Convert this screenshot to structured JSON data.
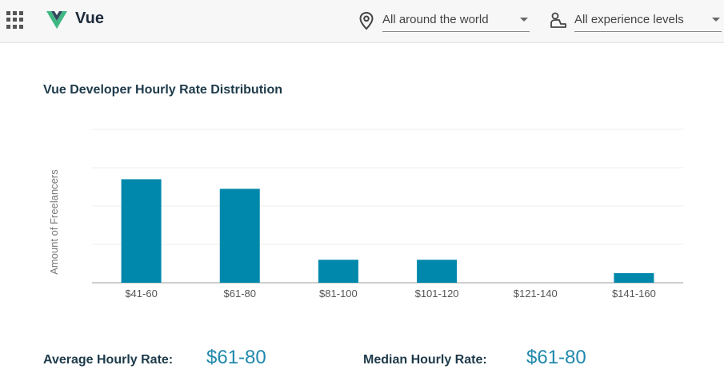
{
  "header": {
    "app_icon": "apps-grid-icon",
    "brand_icon": "vue-logo",
    "brand": "Vue",
    "location_icon": "location-pin-icon",
    "location_filter": "All around the world",
    "experience_icon": "user-experience-icon",
    "experience_filter": "All experience levels"
  },
  "chart_data": {
    "type": "bar",
    "title": "Vue Developer Hourly Rate Distribution",
    "ylabel": "Amount of Freelancers",
    "xlabel": "",
    "categories": [
      "$41-60",
      "$61-80",
      "$81-100",
      "$101-120",
      "$121-140",
      "$141-160"
    ],
    "values": [
      2.7,
      2.45,
      0.6,
      0.6,
      0,
      0.25
    ],
    "ylim": [
      0,
      4
    ],
    "grid": true,
    "bar_color": "#0088ac"
  },
  "stats": {
    "average_label": "Average Hourly Rate:",
    "average_value": "$61-80",
    "median_label": "Median Hourly Rate:",
    "median_value": "$61-80"
  }
}
